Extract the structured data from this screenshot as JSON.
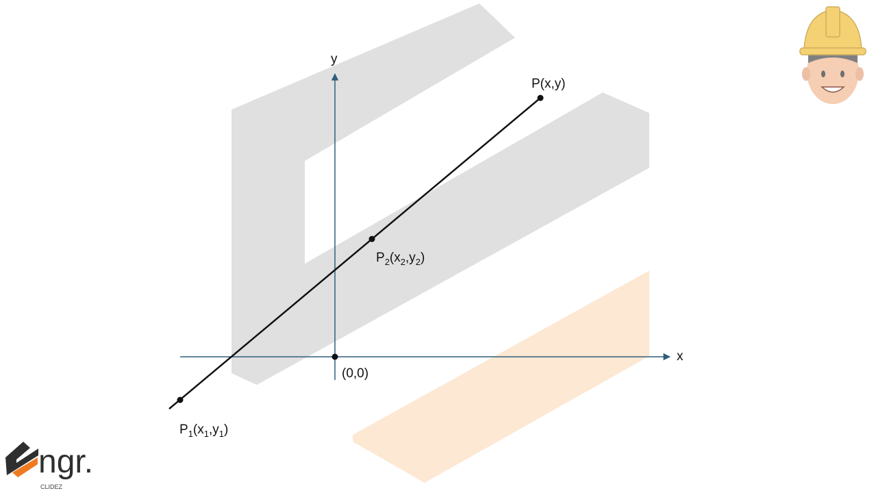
{
  "diagram": {
    "axis_x_label": "x",
    "axis_y_label": "y",
    "origin_label": "(0,0)",
    "points": {
      "p": {
        "label": "P(x,y)"
      },
      "p1": {
        "main": "P",
        "sub": "1",
        "open": "(x",
        "sub_x": "1",
        "comma": ",y",
        "sub_y": "1",
        "close": ")"
      },
      "p2": {
        "main": "P",
        "sub": "2",
        "open": "(x",
        "sub_x": "2",
        "comma": ",y",
        "sub_y": "2",
        "close": ")"
      }
    },
    "colors": {
      "axes": "#2e5f7a",
      "line": "#111111",
      "watermark_gray": "#e0e0e0",
      "watermark_orange": "#fde8d4"
    }
  },
  "logo": {
    "text": "ngr.",
    "subtext": "CLIDEZ",
    "accent": "#f07a22"
  },
  "mascot": {
    "name": "engineer-mascot"
  }
}
